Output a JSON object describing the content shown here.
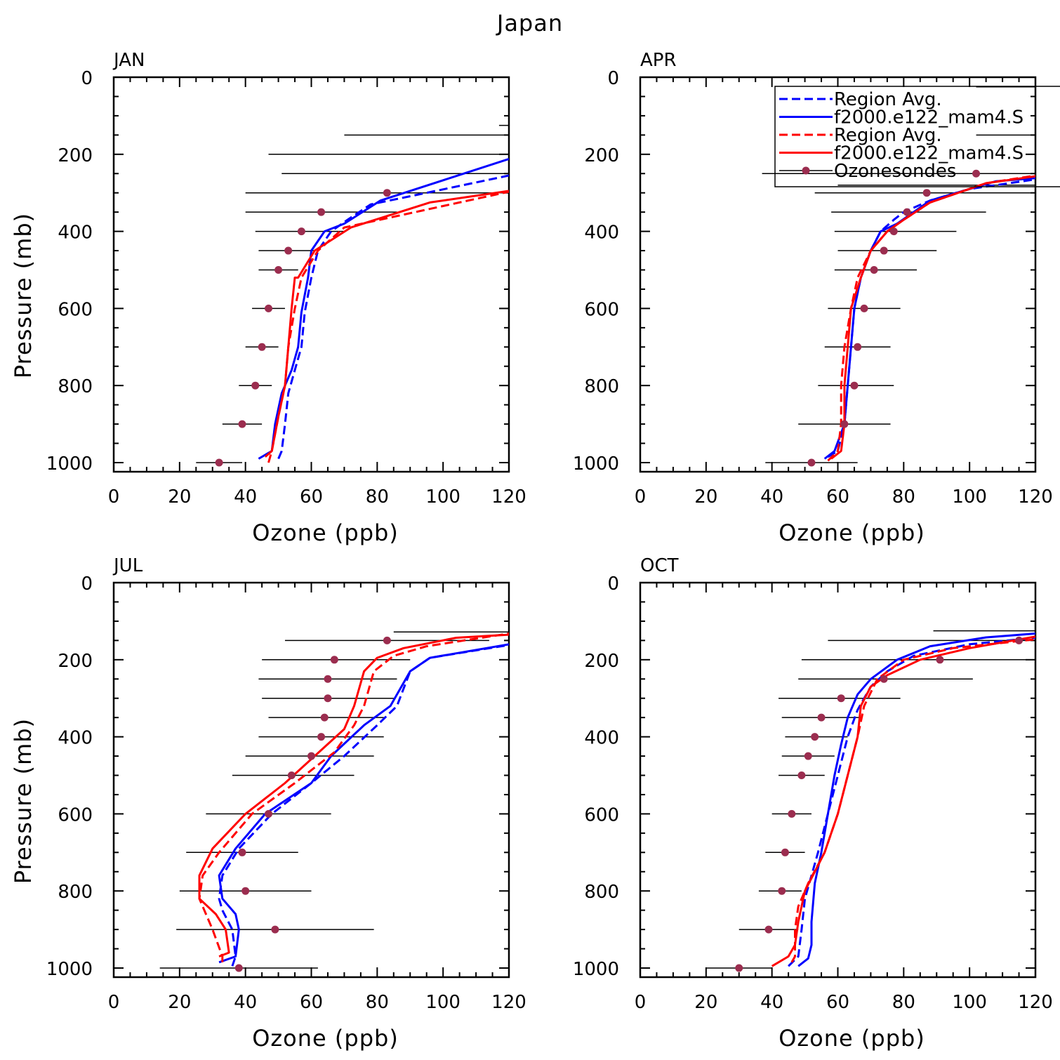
{
  "title": "Japan",
  "colors": {
    "model_a": "#0000ff",
    "model_b": "#ff0000",
    "obs": "#9b2d4f",
    "errorbar": "#000000",
    "axis": "#000000"
  },
  "legend": [
    {
      "label": "Region Avg.",
      "color": "#0000ff",
      "style": "dashed"
    },
    {
      "label": "f2000.e122_mam4.S",
      "color": "#0000ff",
      "style": "solid"
    },
    {
      "label": "Region Avg.",
      "color": "#ff0000",
      "style": "dashed"
    },
    {
      "label": "f2000.e122_mam4.S",
      "color": "#ff0000",
      "style": "solid"
    },
    {
      "label": "Ozonesondes",
      "color": "#9b2d4f",
      "style": "marker"
    }
  ],
  "chart_data": [
    {
      "type": "line",
      "title": "JAN",
      "xlabel": "Ozone (ppb)",
      "ylabel": "Pressure (mb)",
      "xlim": [
        0,
        120
      ],
      "ylim": [
        1000,
        0
      ],
      "xticks": [
        0,
        20,
        40,
        60,
        80,
        100,
        120
      ],
      "yticks": [
        0,
        200,
        400,
        600,
        800,
        1000
      ],
      "series": [
        {
          "name": "Region Avg.",
          "color": "#0000ff",
          "style": "dashed",
          "x": [
            50,
            51,
            52,
            53,
            55,
            57,
            58,
            60,
            62,
            66,
            71,
            78,
            95,
            120
          ],
          "p": [
            990,
            970,
            900,
            820,
            760,
            700,
            610,
            520,
            450,
            400,
            370,
            330,
            300,
            255
          ]
        },
        {
          "name": "f2000.e122_mam4.S",
          "color": "#0000ff",
          "style": "solid",
          "x": [
            44,
            48,
            49,
            51,
            54,
            56,
            57,
            59,
            60,
            64,
            70,
            81,
            120
          ],
          "p": [
            990,
            970,
            900,
            820,
            760,
            700,
            610,
            520,
            450,
            400,
            380,
            320,
            212
          ]
        },
        {
          "name": "Region Avg.",
          "color": "#ff0000",
          "style": "dashed",
          "x": [
            47,
            48,
            50,
            52,
            53,
            55,
            57,
            62,
            70,
            120
          ],
          "p": [
            1000,
            970,
            880,
            800,
            700,
            600,
            520,
            450,
            390,
            297
          ]
        },
        {
          "name": "f2000.e122_mam4.S",
          "color": "#ff0000",
          "style": "solid",
          "x": [
            46,
            48,
            50,
            52,
            53,
            54,
            55,
            56,
            61,
            72,
            96,
            120
          ],
          "p": [
            985,
            970,
            880,
            800,
            700,
            600,
            520,
            520,
            450,
            390,
            325,
            295
          ]
        }
      ],
      "observations": {
        "name": "Ozonesondes",
        "p": [
          1000,
          900,
          800,
          700,
          600,
          500,
          450,
          400,
          350,
          300
        ],
        "mean": [
          32,
          39,
          43,
          45,
          47,
          50,
          53,
          57,
          63,
          83
        ],
        "min": [
          25,
          33,
          38,
          40,
          42,
          44,
          44,
          43,
          40,
          40
        ],
        "max": [
          39,
          45,
          48,
          50,
          52,
          56,
          61,
          70,
          86,
          120
        ]
      },
      "extra_ranges": [
        {
          "p": 250,
          "min": 51,
          "max": 120
        },
        {
          "p": 200,
          "min": 47,
          "max": 120
        },
        {
          "p": 150,
          "min": 70,
          "max": 120
        },
        {
          "p": 125,
          "min": 117,
          "max": 120
        }
      ]
    },
    {
      "type": "line",
      "title": "APR",
      "xlabel": "Ozone (ppb)",
      "ylabel": "",
      "xlim": [
        0,
        120
      ],
      "ylim": [
        1000,
        0
      ],
      "xticks": [
        0,
        20,
        40,
        60,
        80,
        100,
        120
      ],
      "yticks": [
        0,
        200,
        400,
        600,
        800,
        1000
      ],
      "series": [
        {
          "name": "Region Avg.",
          "color": "#0000ff",
          "style": "dashed",
          "x": [
            57,
            60,
            62,
            63,
            64,
            65,
            67,
            70,
            73,
            77,
            80,
            88,
            100,
            120
          ],
          "p": [
            985,
            970,
            900,
            800,
            700,
            600,
            520,
            450,
            400,
            370,
            350,
            320,
            290,
            265
          ]
        },
        {
          "name": "f2000.e122_mam4.S",
          "color": "#0000ff",
          "style": "solid",
          "x": [
            56,
            59,
            62,
            63,
            64,
            65,
            67,
            70,
            73,
            78,
            88,
            108,
            120
          ],
          "p": [
            990,
            970,
            900,
            800,
            700,
            600,
            520,
            450,
            400,
            380,
            320,
            270,
            262
          ]
        },
        {
          "name": "Region Avg.",
          "color": "#ff0000",
          "style": "dashed",
          "x": [
            57,
            60,
            61,
            61,
            62,
            64,
            66,
            70,
            75,
            80,
            88,
            105,
            120
          ],
          "p": [
            995,
            970,
            900,
            800,
            700,
            600,
            520,
            450,
            400,
            370,
            325,
            275,
            255
          ]
        },
        {
          "name": "f2000.e122_mam4.S",
          "color": "#ff0000",
          "style": "solid",
          "x": [
            58,
            61,
            62,
            62,
            63,
            64,
            67,
            70,
            75,
            80,
            88,
            105,
            120
          ],
          "p": [
            990,
            970,
            900,
            800,
            700,
            600,
            520,
            450,
            400,
            370,
            325,
            275,
            257
          ]
        }
      ],
      "observations": {
        "name": "Ozonesondes",
        "p": [
          1000,
          900,
          800,
          700,
          600,
          500,
          450,
          400,
          350,
          300,
          250
        ],
        "mean": [
          52,
          62,
          65,
          66,
          68,
          71,
          74,
          77,
          81,
          87,
          102
        ],
        "min": [
          38,
          48,
          54,
          56,
          57,
          59,
          60,
          59,
          58,
          53,
          37
        ],
        "max": [
          66,
          76,
          77,
          76,
          79,
          84,
          90,
          96,
          105,
          120,
          120
        ]
      },
      "extra_ranges": [
        {
          "p": 280,
          "min": 60,
          "max": 120
        },
        {
          "p": 150,
          "min": 102,
          "max": 120
        },
        {
          "p": 25,
          "min": 102,
          "max": 120
        }
      ]
    },
    {
      "type": "line",
      "title": "JUL",
      "xlabel": "Ozone (ppb)",
      "ylabel": "Pressure (mb)",
      "xlim": [
        0,
        120
      ],
      "ylim": [
        1000,
        0
      ],
      "xticks": [
        0,
        20,
        40,
        60,
        80,
        100,
        120
      ],
      "yticks": [
        0,
        200,
        400,
        600,
        800,
        1000
      ],
      "series": [
        {
          "name": "Region Avg.",
          "color": "#0000ff",
          "style": "dashed",
          "x": [
            36,
            37,
            36,
            33,
            32,
            33,
            38,
            48,
            60,
            70,
            80,
            86,
            90,
            96,
            120
          ],
          "p": [
            995,
            970,
            900,
            850,
            820,
            760,
            690,
            600,
            520,
            450,
            370,
            320,
            230,
            195,
            162
          ]
        },
        {
          "name": "f2000.e122_mam4.S",
          "color": "#0000ff",
          "style": "solid",
          "x": [
            32,
            37,
            38,
            37,
            33,
            32,
            37,
            46,
            60,
            66,
            76,
            84,
            90,
            96,
            120
          ],
          "p": [
            985,
            970,
            900,
            860,
            820,
            760,
            690,
            600,
            520,
            450,
            370,
            320,
            230,
            195,
            160
          ]
        },
        {
          "name": "Region Avg.",
          "color": "#ff0000",
          "style": "dashed",
          "x": [
            33,
            33,
            30,
            26,
            27,
            32,
            42,
            55,
            67,
            73,
            76,
            79,
            85,
            95,
            120
          ],
          "p": [
            985,
            970,
            900,
            820,
            760,
            700,
            600,
            520,
            440,
            370,
            320,
            230,
            190,
            165,
            132
          ]
        },
        {
          "name": "f2000.e122_mam4.S",
          "color": "#ff0000",
          "style": "solid",
          "x": [
            32,
            35,
            34,
            31,
            26,
            26,
            30,
            40,
            52,
            70,
            73,
            76,
            80,
            88,
            104,
            120
          ],
          "p": [
            970,
            960,
            900,
            860,
            820,
            760,
            690,
            600,
            520,
            380,
            320,
            230,
            195,
            170,
            143,
            135
          ]
        }
      ],
      "observations": {
        "name": "Ozonesondes",
        "p": [
          1000,
          900,
          800,
          700,
          600,
          500,
          450,
          400,
          350,
          300,
          250,
          200,
          150
        ],
        "mean": [
          38,
          49,
          40,
          39,
          47,
          54,
          60,
          63,
          64,
          65,
          65,
          67,
          83
        ],
        "min": [
          14,
          19,
          20,
          22,
          28,
          36,
          40,
          44,
          47,
          45,
          44,
          45,
          52
        ],
        "max": [
          62,
          79,
          60,
          56,
          66,
          73,
          79,
          82,
          82,
          85,
          86,
          90,
          114
        ]
      },
      "extra_ranges": [
        {
          "p": 128,
          "min": 85,
          "max": 120
        }
      ]
    },
    {
      "type": "line",
      "title": "OCT",
      "xlabel": "Ozone (ppb)",
      "ylabel": "",
      "xlim": [
        0,
        120
      ],
      "ylim": [
        1000,
        0
      ],
      "xticks": [
        0,
        20,
        40,
        60,
        80,
        100,
        120
      ],
      "yticks": [
        0,
        200,
        400,
        600,
        800,
        1000
      ],
      "series": [
        {
          "name": "Region Avg.",
          "color": "#0000ff",
          "style": "dashed",
          "x": [
            45,
            48,
            49,
            50,
            52,
            54,
            57,
            60,
            63,
            66,
            70,
            75,
            83,
            100,
            120
          ],
          "p": [
            995,
            970,
            900,
            820,
            760,
            700,
            600,
            500,
            400,
            330,
            270,
            230,
            190,
            160,
            143
          ]
        },
        {
          "name": "f2000.e122_mam4.S",
          "color": "#0000ff",
          "style": "solid",
          "x": [
            48,
            51,
            52,
            52,
            53,
            55,
            57,
            59,
            61,
            63,
            66,
            70,
            78,
            88,
            105,
            120
          ],
          "p": [
            995,
            975,
            940,
            880,
            780,
            700,
            600,
            500,
            420,
            350,
            290,
            250,
            200,
            165,
            142,
            132
          ]
        },
        {
          "name": "Region Avg.",
          "color": "#ff0000",
          "style": "dashed",
          "x": [
            46,
            47,
            47,
            48,
            51,
            56,
            60,
            63,
            66,
            68,
            72,
            80,
            95,
            120
          ],
          "p": [
            985,
            970,
            900,
            840,
            780,
            700,
            600,
            500,
            400,
            320,
            250,
            200,
            170,
            147
          ]
        },
        {
          "name": "f2000.e122_mam4.S",
          "color": "#ff0000",
          "style": "solid",
          "x": [
            40,
            45,
            47,
            48,
            50,
            53,
            56,
            60,
            63,
            66,
            67,
            70,
            75,
            85,
            100,
            120
          ],
          "p": [
            995,
            970,
            940,
            880,
            800,
            750,
            700,
            600,
            500,
            400,
            320,
            270,
            240,
            200,
            170,
            140
          ]
        }
      ],
      "observations": {
        "name": "Ozonesondes",
        "p": [
          1000,
          900,
          800,
          700,
          600,
          500,
          450,
          400,
          350,
          300,
          250,
          200,
          150
        ],
        "mean": [
          30,
          39,
          43,
          44,
          46,
          49,
          51,
          53,
          55,
          61,
          74,
          91,
          115
        ],
        "min": [
          20,
          30,
          36,
          38,
          40,
          42,
          43,
          44,
          43,
          42,
          48,
          49,
          57
        ],
        "max": [
          40,
          48,
          49,
          50,
          52,
          56,
          59,
          63,
          67,
          79,
          101,
          120,
          120
        ]
      },
      "extra_ranges": [
        {
          "p": 125,
          "min": 89,
          "max": 120
        }
      ]
    }
  ]
}
